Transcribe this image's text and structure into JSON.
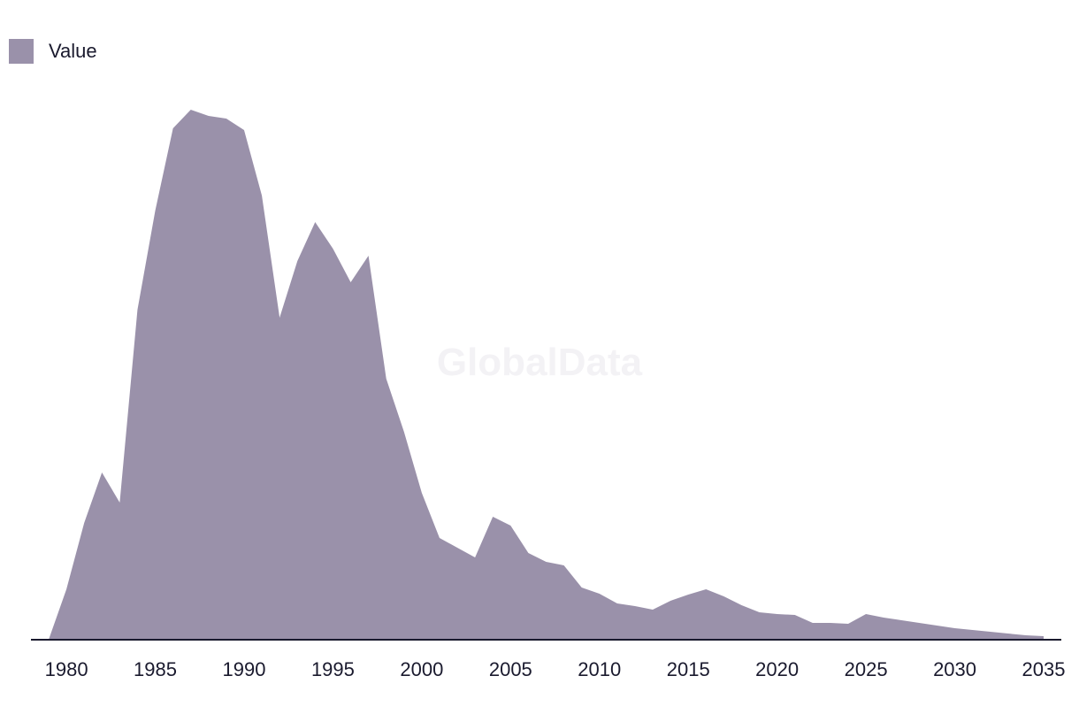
{
  "chart_data": {
    "type": "area",
    "series": [
      {
        "name": "Value",
        "color": "#9a91aa",
        "x": [
          1979,
          1980,
          1981,
          1982,
          1983,
          1984,
          1985,
          1986,
          1987,
          1988,
          1989,
          1990,
          1991,
          1992,
          1993,
          1994,
          1995,
          1996,
          1997,
          1998,
          1999,
          2000,
          2001,
          2002,
          2003,
          2004,
          2005,
          2006,
          2007,
          2008,
          2009,
          2010,
          2011,
          2012,
          2013,
          2014,
          2015,
          2016,
          2017,
          2018,
          2019,
          2020,
          2021,
          2022,
          2023,
          2024,
          2025,
          2026,
          2027,
          2028,
          2029,
          2030,
          2031,
          2032,
          2033,
          2034,
          2035
        ],
        "values": [
          0,
          57,
          132,
          189,
          155,
          373,
          485,
          578,
          599,
          592,
          589,
          576,
          502,
          364,
          428,
          472,
          442,
          404,
          434,
          295,
          235,
          166,
          115,
          104,
          93,
          139,
          129,
          98,
          88,
          84,
          59,
          52,
          41,
          38,
          34,
          44,
          51,
          57,
          49,
          39,
          31,
          29,
          28,
          19,
          19,
          18,
          29,
          25,
          22,
          19,
          16,
          13,
          11,
          9,
          7,
          5,
          4
        ]
      }
    ],
    "xticks": [
      1980,
      1985,
      1990,
      1995,
      2000,
      2005,
      2010,
      2015,
      2020,
      2025,
      2030,
      2035
    ],
    "xlim": [
      1979,
      2035
    ],
    "ylim": [
      0,
      600
    ],
    "title": "",
    "xlabel": "",
    "ylabel": "",
    "legend": "top-left",
    "grid": false,
    "axis_color": "#1a1a2e",
    "watermark": "GlobalData"
  }
}
